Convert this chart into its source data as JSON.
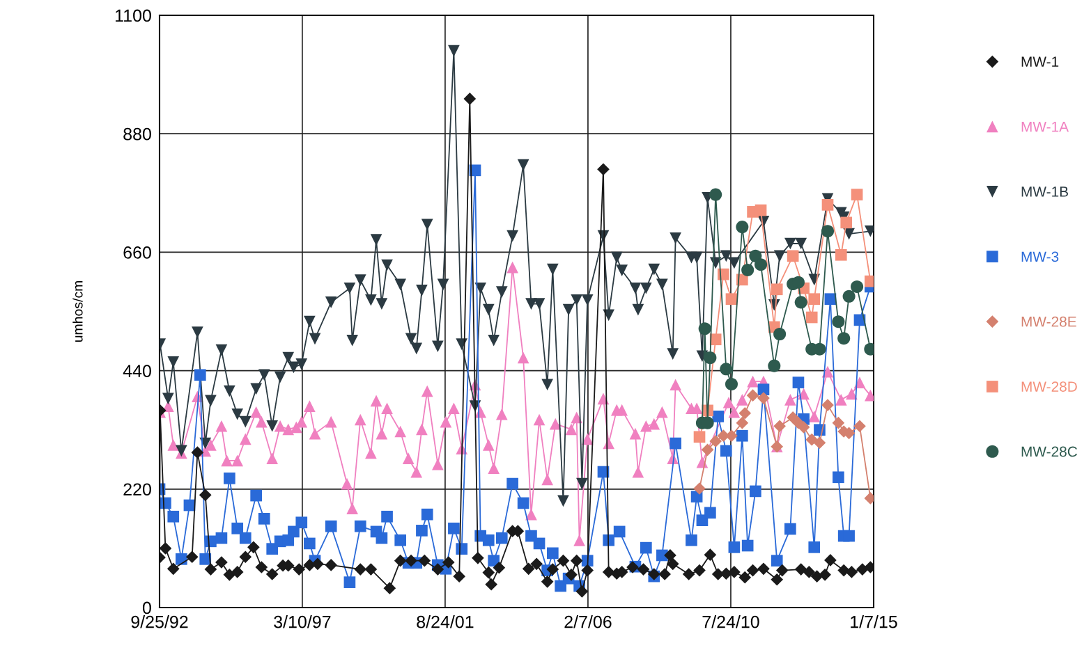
{
  "chart_data": {
    "type": "line",
    "ylabel": "umhos/cm",
    "xlim": [
      "1992-09-25",
      "2015-01-07"
    ],
    "xticks": [
      {
        "value": "1992-09-25",
        "label": "9/25/92"
      },
      {
        "value": "1997-03-10",
        "label": "3/10/97"
      },
      {
        "value": "2001-08-24",
        "label": "8/24/01"
      },
      {
        "value": "2006-02-07",
        "label": "2/7/06"
      },
      {
        "value": "2010-07-24",
        "label": "7/24/10"
      },
      {
        "value": "2015-01-07",
        "label": "1/7/15"
      }
    ],
    "ylim": [
      0,
      1100
    ],
    "yticks": [
      0,
      220,
      440,
      660,
      880,
      1100
    ],
    "grid": true,
    "legend": "right",
    "line_style": "solid",
    "series": [
      {
        "name": "MW-1",
        "color": "#1a1a1a",
        "marker": "diamond",
        "x": [
          "1992-09-25",
          "1992-10",
          "1992-12",
          "1993-03",
          "1993-10",
          "1993-12",
          "1994-03",
          "1994-05",
          "1994-09",
          "1994-12",
          "1995-03",
          "1995-06",
          "1995-09",
          "1995-12",
          "1996-04",
          "1996-08",
          "1996-10",
          "1997-02",
          "1997-06",
          "1997-09",
          "1998-02",
          "1999-01",
          "1999-05",
          "1999-12",
          "2000-04",
          "2000-08",
          "2001-01",
          "2001-06",
          "2001-10",
          "2002-02",
          "2002-06",
          "2002-09",
          "2003-01",
          "2003-02",
          "2003-05",
          "2003-10",
          "2003-12",
          "2004-04",
          "2004-07",
          "2004-11",
          "2005-01",
          "2005-05",
          "2005-08",
          "2005-10",
          "2005-12",
          "2006-02",
          "2006-08",
          "2006-10",
          "2007-01",
          "2007-03",
          "2007-07",
          "2007-11",
          "2008-03",
          "2008-07",
          "2008-09",
          "2008-10",
          "2009-04",
          "2009-08",
          "2009-12",
          "2010-03",
          "2010-06",
          "2010-09",
          "2011-01",
          "2011-04",
          "2011-08",
          "2012-01",
          "2012-03",
          "2012-10",
          "2013-01",
          "2013-04",
          "2013-07",
          "2013-09",
          "2014-02",
          "2014-05",
          "2014-09",
          "2014-12"
        ],
        "values": [
          93,
          366,
          110,
          72,
          94,
          288,
          209,
          71,
          84,
          61,
          66,
          94,
          112,
          75,
          62,
          78,
          78,
          71,
          79,
          81,
          79,
          71,
          71,
          36,
          87,
          87,
          87,
          71,
          84,
          58,
          945,
          92,
          65,
          43,
          74,
          142,
          142,
          72,
          81,
          48,
          71,
          87,
          61,
          87,
          30,
          69,
          814,
          66,
          63,
          66,
          75,
          71,
          62,
          62,
          97,
          81,
          62,
          69,
          98,
          62,
          63,
          66,
          56,
          69,
          72,
          52,
          69,
          71,
          66,
          58,
          61,
          88,
          69,
          66,
          71,
          75
        ]
      },
      {
        "name": "MW-1A",
        "color": "#f080c0",
        "marker": "triangle",
        "x": [
          "1992-10",
          "1993-01",
          "1993-03",
          "1993-06",
          "1993-12",
          "1994-03",
          "1994-05",
          "1994-09",
          "1994-11",
          "1995-03",
          "1995-06",
          "1995-10",
          "1995-12",
          "1996-04",
          "1996-07",
          "1996-10",
          "1997-01",
          "1997-03",
          "1997-06",
          "1997-08",
          "1998-02",
          "1998-08",
          "1998-10",
          "1999-01",
          "1999-05",
          "1999-07",
          "1999-09",
          "1999-11",
          "2000-04",
          "2000-07",
          "2000-10",
          "2000-12",
          "2001-02",
          "2001-06",
          "2001-09",
          "2001-12",
          "2002-03",
          "2002-08",
          "2002-10",
          "2003-01",
          "2003-03",
          "2003-06",
          "2003-10",
          "2004-02",
          "2004-05",
          "2004-08",
          "2004-11",
          "2005-02",
          "2005-08",
          "2005-10",
          "2005-11",
          "2006-02",
          "2006-08",
          "2006-10",
          "2007-01",
          "2007-03",
          "2007-08",
          "2007-09",
          "2007-12",
          "2008-03",
          "2008-06",
          "2008-10",
          "2008-11",
          "2009-05",
          "2009-07",
          "2009-09",
          "2010-07",
          "2010-09",
          "2010-12",
          "2011-04",
          "2011-08",
          "2012-01",
          "2012-06",
          "2012-11",
          "2013-03",
          "2013-08",
          "2014-01",
          "2014-05",
          "2014-08",
          "2014-12"
        ],
        "values": [
          363,
          374,
          302,
          287,
          392,
          291,
          302,
          337,
          273,
          273,
          313,
          363,
          345,
          277,
          337,
          331,
          335,
          345,
          374,
          323,
          345,
          230,
          184,
          349,
          287,
          384,
          323,
          370,
          327,
          277,
          252,
          331,
          402,
          266,
          345,
          370,
          295,
          414,
          363,
          302,
          259,
          359,
          632,
          464,
          173,
          349,
          238,
          341,
          331,
          353,
          125,
          313,
          388,
          305,
          367,
          367,
          323,
          252,
          337,
          341,
          363,
          277,
          414,
          370,
          370,
          270,
          381,
          363,
          386,
          420,
          420,
          299,
          386,
          397,
          355,
          438,
          386,
          397,
          418,
          394
        ]
      },
      {
        "name": "MW-1B",
        "color": "#2b3a42",
        "marker": "triangle_down",
        "x": [
          "1992-10",
          "1993-01",
          "1993-03",
          "1993-06",
          "1993-12",
          "1994-03",
          "1994-05",
          "1994-09",
          "1994-12",
          "1995-03",
          "1995-06",
          "1995-10",
          "1996-01",
          "1996-04",
          "1996-07",
          "1996-10",
          "1996-12",
          "1997-03",
          "1997-06",
          "1997-08",
          "1998-02",
          "1998-09",
          "1998-10",
          "1999-01",
          "1999-05",
          "1999-07",
          "1999-09",
          "1999-11",
          "2000-04",
          "2000-08",
          "2000-10",
          "2000-12",
          "2001-02",
          "2001-06",
          "2001-08",
          "2001-12",
          "2002-03",
          "2002-08",
          "2002-10",
          "2003-01",
          "2003-03",
          "2003-06",
          "2003-10",
          "2004-02",
          "2004-05",
          "2004-08",
          "2004-11",
          "2005-01",
          "2005-05",
          "2005-07",
          "2005-10",
          "2005-12",
          "2006-02",
          "2006-08",
          "2006-10",
          "2007-01",
          "2007-03",
          "2007-08",
          "2007-09",
          "2007-12",
          "2008-03",
          "2008-06",
          "2008-10",
          "2008-11",
          "2009-05",
          "2009-07",
          "2009-09",
          "2009-11",
          "2010-02",
          "2010-06",
          "2010-09",
          "2011-08",
          "2011-12",
          "2012-02",
          "2012-06",
          "2012-10",
          "2013-03",
          "2013-08",
          "2014-01",
          "2014-02",
          "2014-04",
          "2014-12"
        ],
        "values": [
          489,
          388,
          456,
          291,
          511,
          305,
          384,
          478,
          402,
          359,
          345,
          406,
          432,
          337,
          428,
          464,
          446,
          452,
          531,
          499,
          567,
          593,
          496,
          608,
          571,
          683,
          564,
          636,
          600,
          499,
          481,
          589,
          711,
          485,
          600,
          1034,
          489,
          374,
          593,
          553,
          496,
          586,
          690,
          822,
          564,
          564,
          414,
          628,
          198,
          553,
          571,
          230,
          571,
          690,
          543,
          650,
          626,
          593,
          553,
          593,
          628,
          600,
          471,
          686,
          650,
          650,
          467,
          761,
          640,
          653,
          640,
          717,
          562,
          653,
          676,
          676,
          609,
          759,
          733,
          725,
          694,
          699
        ]
      },
      {
        "name": "MW-3",
        "color": "#2a6ad8",
        "marker": "square",
        "x": [
          "1992-09-25",
          "1992-12",
          "1993-03",
          "1993-06",
          "1993-09",
          "1994-01",
          "1994-03",
          "1994-05",
          "1994-09",
          "1994-12",
          "1995-03",
          "1995-06",
          "1995-10",
          "1996-01",
          "1996-04",
          "1996-07",
          "1996-10",
          "1996-12",
          "1997-03",
          "1997-06",
          "1997-08",
          "1998-02",
          "1998-09",
          "1999-01",
          "1999-07",
          "1999-09",
          "1999-11",
          "2000-04",
          "2000-07",
          "2000-10",
          "2000-12",
          "2001-02",
          "2001-06",
          "2001-09",
          "2001-12",
          "2002-03",
          "2002-08",
          "2002-10",
          "2003-01",
          "2003-03",
          "2003-06",
          "2003-10",
          "2004-02",
          "2004-05",
          "2004-08",
          "2004-11",
          "2005-01",
          "2005-04",
          "2005-07",
          "2005-11",
          "2006-02",
          "2006-08",
          "2006-10",
          "2007-02",
          "2007-08",
          "2007-12",
          "2008-03",
          "2008-06",
          "2008-11",
          "2009-05",
          "2009-07",
          "2009-09",
          "2009-12",
          "2010-03",
          "2010-06",
          "2010-09",
          "2010-12",
          "2011-02",
          "2011-05",
          "2011-08",
          "2012-01",
          "2012-06",
          "2012-09",
          "2012-11",
          "2013-03",
          "2013-05",
          "2013-09",
          "2013-12",
          "2014-02",
          "2014-04",
          "2014-08",
          "2014-12"
        ],
        "values": [
          220,
          194,
          169,
          90,
          190,
          432,
          90,
          123,
          129,
          240,
          147,
          129,
          208,
          165,
          109,
          123,
          125,
          141,
          158,
          119,
          87,
          151,
          47,
          151,
          141,
          129,
          169,
          125,
          83,
          83,
          143,
          173,
          79,
          72,
          147,
          109,
          812,
          133,
          125,
          87,
          129,
          230,
          194,
          133,
          119,
          69,
          101,
          40,
          54,
          40,
          87,
          252,
          125,
          141,
          76,
          111,
          58,
          97,
          305,
          125,
          206,
          162,
          176,
          355,
          291,
          112,
          319,
          115,
          216,
          405,
          87,
          146,
          418,
          350,
          112,
          330,
          573,
          242,
          133,
          133,
          534,
          596
        ]
      },
      {
        "name": "MW-28E",
        "color": "#d4806e",
        "marker": "diamond",
        "x": [
          "2009-08",
          "2009-11",
          "2010-02",
          "2010-05",
          "2010-08",
          "2010-12",
          "2011-01",
          "2011-04",
          "2011-08",
          "2012-01",
          "2012-02",
          "2012-07",
          "2012-09",
          "2012-11",
          "2013-02",
          "2013-05",
          "2013-08",
          "2013-12",
          "2014-02",
          "2014-04",
          "2014-08",
          "2014-12"
        ],
        "values": [
          221,
          293,
          309,
          319,
          319,
          343,
          361,
          394,
          389,
          299,
          337,
          353,
          343,
          335,
          312,
          306,
          376,
          343,
          327,
          324,
          337,
          203
        ]
      },
      {
        "name": "MW-28D",
        "color": "#f4907a",
        "marker": "square",
        "x": [
          "2009-08",
          "2009-11",
          "2010-02",
          "2010-05",
          "2010-08",
          "2010-12",
          "2011-04",
          "2011-07",
          "2011-12",
          "2012-01",
          "2012-07",
          "2012-11",
          "2013-02",
          "2013-03",
          "2013-08",
          "2014-01",
          "2014-03",
          "2014-07",
          "2014-12"
        ],
        "values": [
          317,
          366,
          498,
          619,
          573,
          609,
          735,
          738,
          521,
          591,
          653,
          593,
          539,
          573,
          748,
          655,
          715,
          767,
          606
        ]
      },
      {
        "name": "MW-28C",
        "color": "#2e5a4e",
        "marker": "circle",
        "x": [
          "2009-09",
          "2009-10",
          "2009-11",
          "2009-12",
          "2010-02",
          "2010-06",
          "2010-08",
          "2010-12",
          "2011-02",
          "2011-05",
          "2011-07",
          "2011-12",
          "2012-02",
          "2012-07",
          "2012-09",
          "2012-10",
          "2013-02",
          "2013-05",
          "2013-08",
          "2013-12",
          "2014-02",
          "2014-04",
          "2014-07",
          "2014-12"
        ],
        "values": [
          343,
          518,
          343,
          464,
          767,
          443,
          415,
          707,
          627,
          653,
          637,
          449,
          508,
          601,
          604,
          567,
          480,
          480,
          699,
          531,
          500,
          578,
          596,
          480
        ]
      }
    ]
  }
}
